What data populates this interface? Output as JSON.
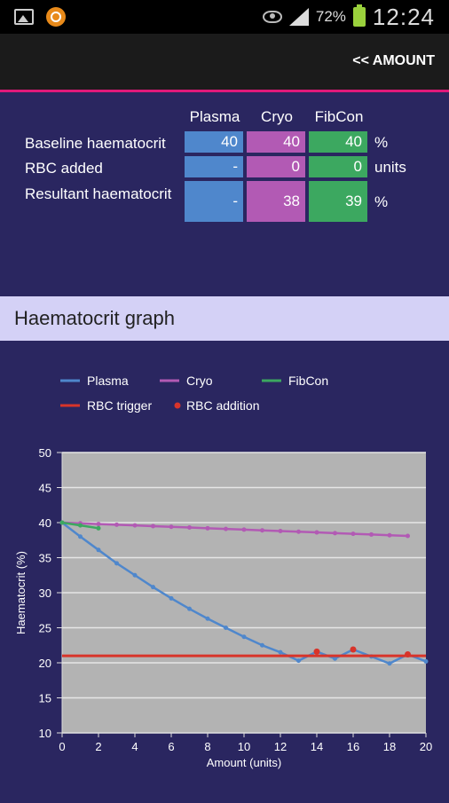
{
  "status_bar": {
    "battery": "72%",
    "time": "12:24"
  },
  "action_bar": {
    "amount_label": "<< AMOUNT"
  },
  "table": {
    "columns": [
      "Plasma",
      "Cryo",
      "FibCon"
    ],
    "rows": [
      {
        "label": "Baseline haematocrit",
        "values": [
          "40",
          "40",
          "40"
        ],
        "unit": "%"
      },
      {
        "label": "RBC added",
        "values": [
          "-",
          "0",
          "0"
        ],
        "unit": "units"
      },
      {
        "label": "Resultant haematocrit",
        "values": [
          "-",
          "38",
          "39"
        ],
        "unit": "%"
      }
    ]
  },
  "section": {
    "title": "Haematocrit graph"
  },
  "colors": {
    "plasma": "#4f87cc",
    "cryo": "#b25ab4",
    "fibcon": "#3ca860",
    "rbc": "#d8342a",
    "accent": "#e0197a",
    "plot_bg": "#b3b3b3"
  },
  "chart_data": {
    "type": "line",
    "xlabel": "Amount (units)",
    "ylabel": "Haematocrit (%)",
    "xlim": [
      0,
      20
    ],
    "ylim": [
      10,
      50
    ],
    "xticks": [
      0,
      2,
      4,
      6,
      8,
      10,
      12,
      14,
      16,
      18,
      20
    ],
    "yticks": [
      10,
      15,
      20,
      25,
      30,
      35,
      40,
      45,
      50
    ],
    "grid": true,
    "legend": [
      "Plasma",
      "Cryo",
      "FibCon",
      "RBC trigger",
      "RBC addition"
    ],
    "series": [
      {
        "name": "Plasma",
        "color": "#4f87cc",
        "x": [
          0,
          1,
          2,
          3,
          4,
          5,
          6,
          7,
          8,
          9,
          10,
          11,
          12,
          13,
          14,
          15,
          16,
          17,
          18,
          19,
          20
        ],
        "y": [
          40,
          38,
          36.1,
          34.2,
          32.5,
          30.8,
          29.2,
          27.7,
          26.3,
          25.0,
          23.7,
          22.5,
          21.5,
          20.3,
          21.6,
          20.6,
          21.9,
          20.9,
          19.9,
          21.2,
          20.2
        ]
      },
      {
        "name": "Cryo",
        "color": "#b25ab4",
        "x": [
          0,
          1,
          2,
          3,
          4,
          5,
          6,
          7,
          8,
          9,
          10,
          11,
          12,
          13,
          14,
          15,
          16,
          17,
          18,
          19
        ],
        "y": [
          40,
          39.9,
          39.8,
          39.7,
          39.6,
          39.5,
          39.4,
          39.3,
          39.2,
          39.1,
          39.0,
          38.9,
          38.8,
          38.7,
          38.6,
          38.5,
          38.4,
          38.3,
          38.2,
          38.1
        ]
      },
      {
        "name": "FibCon",
        "color": "#3ca860",
        "x": [
          0,
          1,
          2
        ],
        "y": [
          40,
          39.6,
          39.2
        ]
      },
      {
        "name": "RBC trigger",
        "color": "#d8342a",
        "x": [
          0,
          20
        ],
        "y": [
          21,
          21
        ]
      },
      {
        "name": "RBC addition",
        "color": "#d8342a",
        "x": [
          14,
          16,
          19
        ],
        "y": [
          21.6,
          21.9,
          21.2
        ]
      }
    ]
  }
}
